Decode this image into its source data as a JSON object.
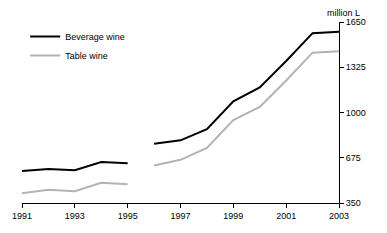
{
  "chart_data": {
    "type": "line",
    "ylabel": "million L",
    "x": [
      1991,
      1992,
      1993,
      1994,
      1995,
      1995.5,
      1996,
      1997,
      1998,
      1999,
      2000,
      2001,
      2002,
      2003
    ],
    "series": [
      {
        "name": "Beverage wine",
        "color": "#000000",
        "values": [
          580,
          595,
          585,
          645,
          635,
          null,
          775,
          800,
          880,
          1080,
          1180,
          1370,
          1570,
          1580
        ]
      },
      {
        "name": "Table wine",
        "color": "#b3b3b3",
        "values": [
          420,
          445,
          435,
          495,
          485,
          null,
          620,
          660,
          745,
          945,
          1040,
          1230,
          1430,
          1440
        ]
      }
    ],
    "xlim": [
      1991,
      2003
    ],
    "xticks": [
      1991,
      1993,
      1995,
      1997,
      1999,
      2001,
      2003
    ],
    "ylim": [
      350,
      1650
    ],
    "yticks": [
      350,
      675,
      1000,
      1325,
      1650
    ],
    "grid": false,
    "legend": "top-left"
  }
}
